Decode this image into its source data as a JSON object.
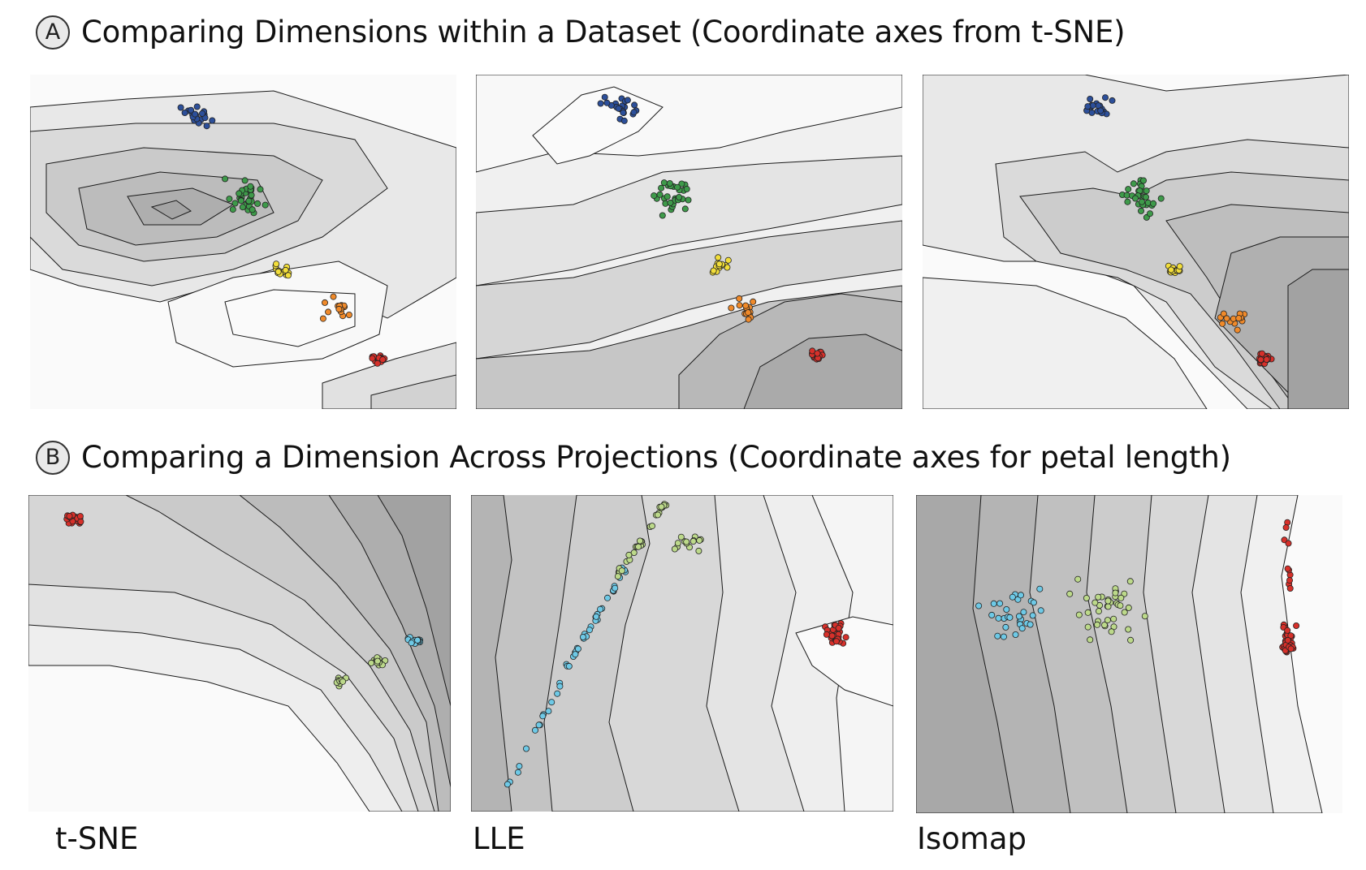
{
  "sections": [
    {
      "badge": "A",
      "title": "Comparing Dimensions within a Dataset (Coordinate axes from t-SNE)"
    },
    {
      "badge": "B",
      "title": "Comparing a Dimension Across Projections (Coordinate axes for petal length)"
    }
  ],
  "panel_labels": [
    "t-SNE",
    "LLE",
    "Isomap"
  ],
  "colors": {
    "blue": "#2c4f9a",
    "green": "#3e9a4a",
    "yellow": "#f2de3a",
    "orange": "#f08a2a",
    "red": "#d7302a",
    "light_green": "#bcd98a",
    "light_blue": "#6ec9e6",
    "contour_light": "#fafafa",
    "contour_dark": "#969696",
    "contour_line": "#1a1a1a"
  }
}
